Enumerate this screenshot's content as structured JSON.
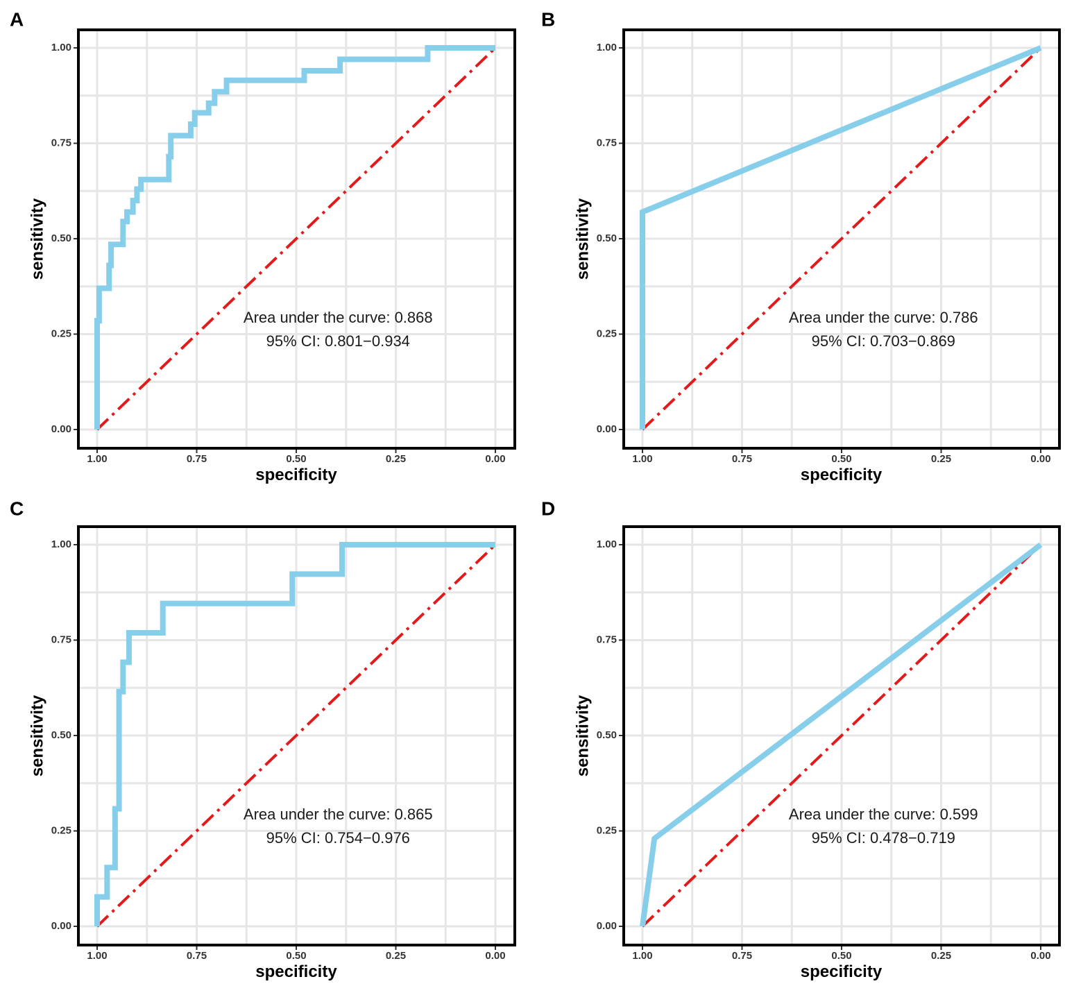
{
  "colors": {
    "curve": "#87ceeb",
    "diagonal": "#e31a1c"
  },
  "chart_data": [
    {
      "type": "line",
      "panel": "A",
      "xlabel": "specificity",
      "ylabel": "sensitivity",
      "xlim": [
        1.0,
        0.0
      ],
      "ylim": [
        0.0,
        1.0
      ],
      "x_ticks": [
        1.0,
        0.75,
        0.5,
        0.25,
        0.0
      ],
      "x_tick_labels": [
        "1.00",
        "0.75",
        "0.50",
        "0.25",
        "0.00"
      ],
      "y_ticks": [
        0.0,
        0.25,
        0.5,
        0.75,
        1.0
      ],
      "y_tick_labels": [
        "0.00",
        "0.25",
        "0.50",
        "0.75",
        "1.00"
      ],
      "grid": true,
      "annotation": [
        "Area under the curve: 0.868",
        "95% CI: 0.801−0.934"
      ],
      "series": [
        {
          "name": "ROC",
          "specificity": [
            1.0,
            1.0,
            0.995,
            0.995,
            0.97,
            0.97,
            0.965,
            0.965,
            0.935,
            0.935,
            0.925,
            0.925,
            0.91,
            0.91,
            0.9,
            0.9,
            0.89,
            0.89,
            0.875,
            0.875,
            0.82,
            0.82,
            0.815,
            0.815,
            0.765,
            0.765,
            0.755,
            0.755,
            0.72,
            0.72,
            0.705,
            0.705,
            0.69,
            0.69,
            0.675,
            0.675,
            0.48,
            0.48,
            0.39,
            0.39,
            0.17,
            0.17,
            0.0
          ],
          "sensitivity": [
            0.0,
            0.285,
            0.285,
            0.37,
            0.37,
            0.43,
            0.43,
            0.485,
            0.485,
            0.545,
            0.545,
            0.57,
            0.57,
            0.6,
            0.6,
            0.63,
            0.63,
            0.655,
            0.655,
            0.655,
            0.655,
            0.715,
            0.715,
            0.77,
            0.77,
            0.8,
            0.8,
            0.83,
            0.83,
            0.855,
            0.855,
            0.885,
            0.885,
            0.885,
            0.885,
            0.915,
            0.915,
            0.94,
            0.94,
            0.97,
            0.97,
            1.0,
            1.0
          ]
        },
        {
          "name": "reference",
          "specificity": [
            1.0,
            0.0
          ],
          "sensitivity": [
            0.0,
            1.0
          ]
        }
      ]
    },
    {
      "type": "line",
      "panel": "B",
      "xlabel": "specificity",
      "ylabel": "sensitivity",
      "xlim": [
        1.0,
        0.0
      ],
      "ylim": [
        0.0,
        1.0
      ],
      "x_ticks": [
        1.0,
        0.75,
        0.5,
        0.25,
        0.0
      ],
      "x_tick_labels": [
        "1.00",
        "0.75",
        "0.50",
        "0.25",
        "0.00"
      ],
      "y_ticks": [
        0.0,
        0.25,
        0.5,
        0.75,
        1.0
      ],
      "y_tick_labels": [
        "0.00",
        "0.25",
        "0.50",
        "0.75",
        "1.00"
      ],
      "grid": true,
      "annotation": [
        "Area under the curve: 0.786",
        "95% CI: 0.703−0.869"
      ],
      "series": [
        {
          "name": "ROC",
          "specificity": [
            1.0,
            1.0,
            0.0
          ],
          "sensitivity": [
            0.0,
            0.57,
            1.0
          ]
        },
        {
          "name": "reference",
          "specificity": [
            1.0,
            0.0
          ],
          "sensitivity": [
            0.0,
            1.0
          ]
        }
      ]
    },
    {
      "type": "line",
      "panel": "C",
      "xlabel": "specificity",
      "ylabel": "sensitivity",
      "xlim": [
        1.0,
        0.0
      ],
      "ylim": [
        0.0,
        1.0
      ],
      "x_ticks": [
        1.0,
        0.75,
        0.5,
        0.25,
        0.0
      ],
      "x_tick_labels": [
        "1.00",
        "0.75",
        "0.50",
        "0.25",
        "0.00"
      ],
      "y_ticks": [
        0.0,
        0.25,
        0.5,
        0.75,
        1.0
      ],
      "y_tick_labels": [
        "0.00",
        "0.25",
        "0.50",
        "0.75",
        "1.00"
      ],
      "grid": true,
      "annotation": [
        "Area under the curve: 0.865",
        "95% CI: 0.754−0.976"
      ],
      "series": [
        {
          "name": "ROC",
          "specificity": [
            1.0,
            1.0,
            0.975,
            0.975,
            0.955,
            0.955,
            0.945,
            0.945,
            0.935,
            0.935,
            0.92,
            0.92,
            0.9,
            0.9,
            0.835,
            0.835,
            0.51,
            0.51,
            0.385,
            0.385,
            0.0
          ],
          "sensitivity": [
            0.0,
            0.077,
            0.077,
            0.154,
            0.154,
            0.308,
            0.308,
            0.615,
            0.615,
            0.692,
            0.692,
            0.769,
            0.769,
            0.769,
            0.769,
            0.846,
            0.846,
            0.923,
            0.923,
            1.0,
            1.0
          ]
        },
        {
          "name": "reference",
          "specificity": [
            1.0,
            0.0
          ],
          "sensitivity": [
            0.0,
            1.0
          ]
        }
      ]
    },
    {
      "type": "line",
      "panel": "D",
      "xlabel": "specificity",
      "ylabel": "sensitivity",
      "xlim": [
        1.0,
        0.0
      ],
      "ylim": [
        0.0,
        1.0
      ],
      "x_ticks": [
        1.0,
        0.75,
        0.5,
        0.25,
        0.0
      ],
      "x_tick_labels": [
        "1.00",
        "0.75",
        "0.50",
        "0.25",
        "0.00"
      ],
      "y_ticks": [
        0.0,
        0.25,
        0.5,
        0.75,
        1.0
      ],
      "y_tick_labels": [
        "0.00",
        "0.25",
        "0.50",
        "0.75",
        "1.00"
      ],
      "grid": true,
      "annotation": [
        "Area under the curve: 0.599",
        "95% CI: 0.478−0.719"
      ],
      "series": [
        {
          "name": "ROC",
          "specificity": [
            1.0,
            0.97,
            0.0
          ],
          "sensitivity": [
            0.0,
            0.23,
            1.0
          ]
        },
        {
          "name": "reference",
          "specificity": [
            1.0,
            0.0
          ],
          "sensitivity": [
            0.0,
            1.0
          ]
        }
      ]
    }
  ]
}
